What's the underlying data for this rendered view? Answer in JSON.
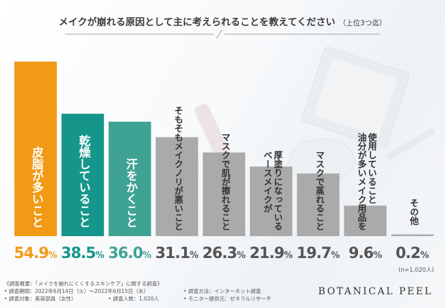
{
  "title": {
    "main": "メイクが崩れる原因として主に考えられることを教えてください",
    "sub": "（上位3つ迄）"
  },
  "chart_data": {
    "type": "bar",
    "categories": [
      "皮脂が多いこと",
      "乾燥していること",
      "汗をかくこと",
      "そもそもメイクノリが悪いこと",
      "マスクで肌が擦れること",
      "厚塗りになっている ベースメイクが",
      "マスクで蒸れること",
      "使用していること 油分が多いメイク用品を",
      "その他"
    ],
    "labels": [
      [
        "皮脂が多いこと"
      ],
      [
        "乾燥していること"
      ],
      [
        "汗をかくこと"
      ],
      [
        "そもそもメイクノリが悪いこと"
      ],
      [
        "マスクで肌が擦れること"
      ],
      [
        "厚塗りになっている",
        "ベースメイクが"
      ],
      [
        "マスクで蒸れること"
      ],
      [
        "使用していること",
        "油分が多いメイク用品を"
      ],
      [
        "その他"
      ]
    ],
    "values": [
      54.9,
      38.5,
      36.0,
      31.1,
      26.3,
      21.9,
      19.7,
      9.6,
      0.2
    ],
    "value_labels": [
      {
        "num": "54.9",
        "unit": "%"
      },
      {
        "num": "38.5",
        "unit": "%"
      },
      {
        "num": "36.0",
        "unit": "%"
      },
      {
        "num": "31.1",
        "unit": "%"
      },
      {
        "num": "26.3",
        "unit": "%"
      },
      {
        "num": "21.9",
        "unit": "%"
      },
      {
        "num": "19.7",
        "unit": "%"
      },
      {
        "num": "9.6",
        "unit": "%"
      },
      {
        "num": "0.2",
        "unit": "%"
      }
    ],
    "ylim": [
      0,
      54.9
    ],
    "grid": false,
    "colors": [
      "#f19a16",
      "#16968a",
      "#3fa394",
      "#aaaaaa",
      "#aaaaaa",
      "#aaaaaa",
      "#aaaaaa",
      "#aaaaaa",
      "#aaaaaa"
    ],
    "label_colors": [
      "#ffffff",
      "#ffffff",
      "#ffffff",
      "#333333",
      "#333333",
      "#333333",
      "#333333",
      "#333333",
      "#333333"
    ],
    "value_colors": [
      "#f19a16",
      "#16968a",
      "#3fa394",
      "#555555",
      "#555555",
      "#555555",
      "#555555",
      "#555555",
      "#555555"
    ]
  },
  "sample_note": "(n=1,020人)",
  "survey": {
    "heading": "《調査概要：「メイクを崩れにくくするスキンケア」に関する調査》",
    "period": "• 調査期間：2022年6月14日（火）〜2022年6月15日（水）",
    "method": "• 調査方法：インターネット調査",
    "target": "• 調査対象：美容部員（女性）",
    "count": "• 調査人数：1,020人",
    "provider": "• モニター提供元：ゼネラルリサーチ"
  },
  "brand": "BOTANICAL PEEL"
}
